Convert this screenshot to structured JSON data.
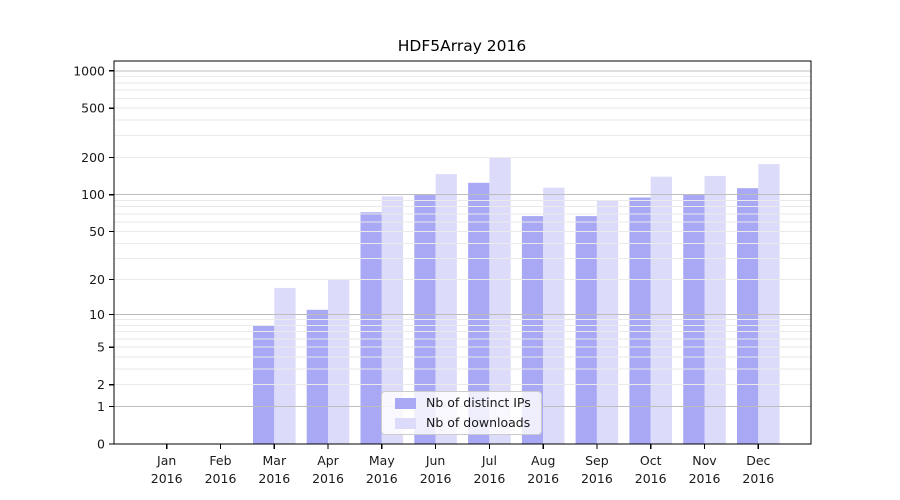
{
  "chart_data": {
    "type": "bar",
    "title": "HDF5Array 2016",
    "year_label": "2016",
    "months": [
      "Jan",
      "Feb",
      "Mar",
      "Apr",
      "May",
      "Jun",
      "Jul",
      "Aug",
      "Sep",
      "Oct",
      "Nov",
      "Dec"
    ],
    "series": [
      {
        "name": "Nb of distinct IPs",
        "color": "#a8a8f5",
        "values": [
          0,
          0,
          8,
          11,
          72,
          100,
          125,
          67,
          67,
          95,
          100,
          113
        ]
      },
      {
        "name": "Nb of downloads",
        "color": "#dcdcfa",
        "values": [
          0,
          0,
          17,
          20,
          97,
          147,
          200,
          114,
          90,
          140,
          142,
          177
        ]
      }
    ],
    "yscale": "log1p",
    "yticks": [
      0,
      1,
      2,
      5,
      10,
      20,
      50,
      100,
      200,
      500,
      1000
    ],
    "ylim": [
      0,
      1200
    ],
    "grid": {
      "shown": true,
      "major_at": [
        1,
        10,
        100,
        1000
      ],
      "major_color": "#bdbdbd",
      "minor_color": "#eaeaea"
    },
    "frame_color": "#000000",
    "text_color": "#1a1a1a",
    "legend_position": "lower-center"
  }
}
